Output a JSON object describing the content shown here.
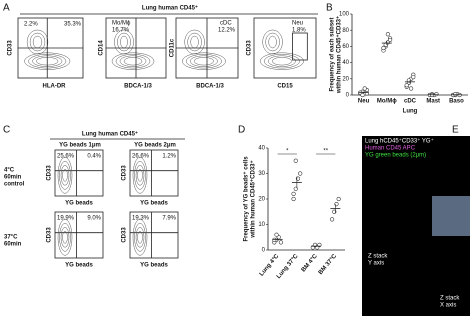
{
  "panels": {
    "A": {
      "label": "A",
      "title": "Lung human CD45⁺",
      "plots": [
        {
          "gate_left": "2.2%",
          "gate_right": "35.3%",
          "y_axis": "CD33",
          "x_axis": "HLA-DR"
        },
        {
          "gate_name": "Mo/Mϕ",
          "gate_value": "16.7%",
          "y_axis": "CD14",
          "x_axis": "BDCA-1/3"
        },
        {
          "gate_name": "cDC",
          "gate_value": "12.2%",
          "y_axis": "CD11c",
          "x_axis": "BDCA-1/3"
        },
        {
          "gate_name": "Neu",
          "gate_value": "1.8%",
          "y_axis": "CD33",
          "x_axis": "CD15"
        }
      ]
    },
    "B": {
      "label": "B"
    },
    "C": {
      "label": "C",
      "title": "Lung human CD45⁺",
      "columns": [
        "YG beads 1μm",
        "YG beads 2μm"
      ],
      "rows": [
        [
          "4°C",
          "60min",
          "control"
        ],
        [
          "37°C",
          "60min"
        ]
      ],
      "plots": [
        {
          "upper_left": "25.6%",
          "upper_right": "0.4%"
        },
        {
          "upper_left": "26.6%",
          "upper_right": "1.2%"
        },
        {
          "upper_left": "19.9%",
          "upper_right": "9.0%"
        },
        {
          "upper_left": "19.3%",
          "upper_right": "7.9%"
        }
      ],
      "y_axis": "CD33",
      "x_axis": "YG beads"
    },
    "D": {
      "label": "D"
    },
    "E": {
      "label": "E",
      "legend": [
        "Lung hCD45⁺CD33⁺ YG⁺",
        "Human CD45 APC",
        "YG green beads (2μm)"
      ],
      "y_stack": [
        "Z stack",
        "Y axis"
      ],
      "x_stack": [
        "Z stack",
        "X axis"
      ]
    }
  },
  "chart_data": [
    {
      "type": "dot",
      "ylabel": [
        "Frequency of each subset",
        "within human CD45⁺CD33⁺"
      ],
      "xlabel": "Lung",
      "categories": [
        "Neu",
        "Mo/Mϕ",
        "cDC",
        "Mast",
        "Baso"
      ],
      "values": [
        [
          2,
          4,
          1,
          6,
          3,
          0,
          8,
          2
        ],
        [
          55,
          60,
          65,
          70,
          58,
          62,
          75,
          68
        ],
        [
          10,
          15,
          20,
          25,
          12,
          18,
          8,
          22
        ],
        [
          0,
          1,
          0,
          1,
          0,
          0
        ],
        [
          0,
          0,
          1,
          0,
          0,
          1
        ]
      ],
      "ylim": [
        0,
        100
      ],
      "yticks": [
        0,
        20,
        40,
        60,
        80,
        100
      ],
      "color": "#333333"
    },
    {
      "type": "dot",
      "ylabel": [
        "Frequency of YG beads⁺ cells",
        "within human CD45⁺CD33⁺"
      ],
      "categories": [
        "Lung 4°C",
        "Lung 37°C",
        "BM 4°C",
        "BM 37°C"
      ],
      "values": [
        [
          3,
          4,
          5,
          3,
          4,
          6
        ],
        [
          20,
          24,
          28,
          30,
          22,
          35
        ],
        [
          1,
          2,
          1,
          2
        ],
        [
          12,
          15,
          18,
          20
        ]
      ],
      "ylim": [
        0,
        40
      ],
      "yticks": [
        0,
        10,
        20,
        30,
        40
      ],
      "annotations": [
        "*",
        "**"
      ],
      "color": "#333333"
    }
  ]
}
